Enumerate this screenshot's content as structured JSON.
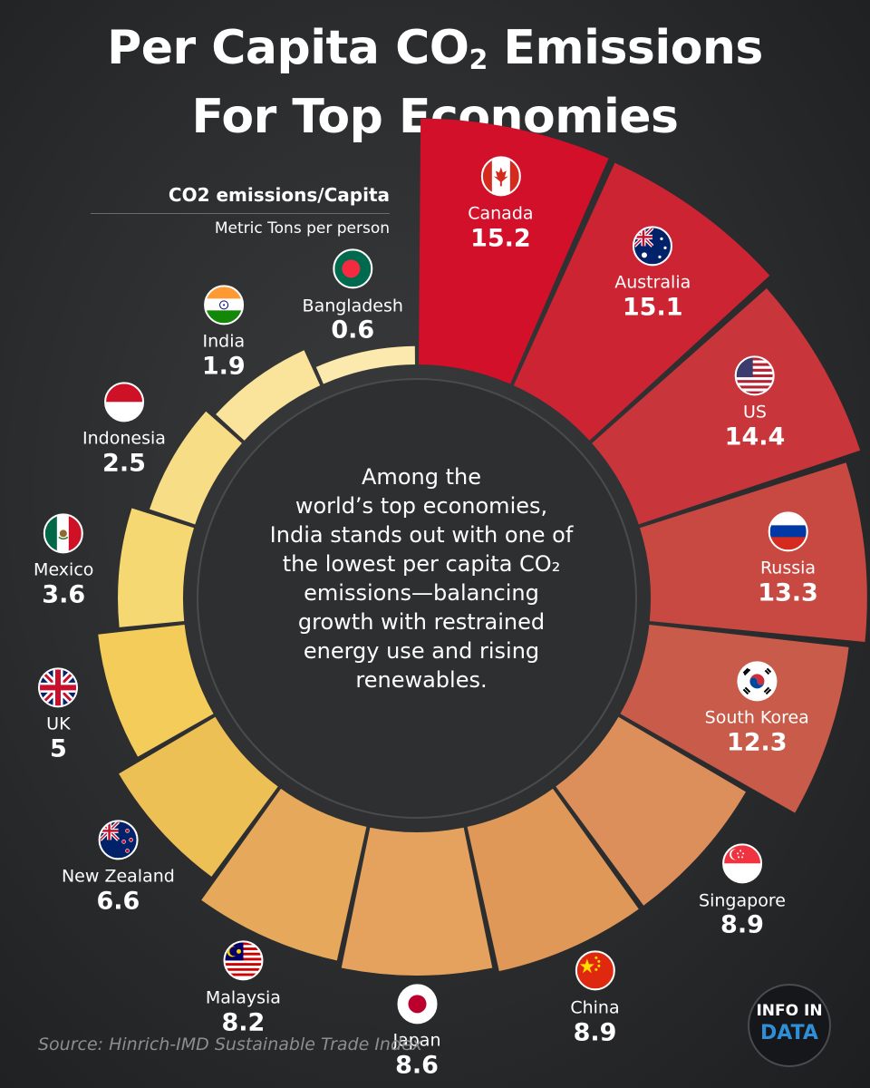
{
  "title": {
    "line1": "Per Capita CO",
    "sub": "2",
    "line1_end": " Emissions",
    "line2": "For Top Economies"
  },
  "legend": {
    "title": "CO2 emissions/Capita",
    "unit": "Metric Tons per person"
  },
  "center_text": {
    "l1": "Among the",
    "l2": "world’s top economies,",
    "l3": "India stands out with one of",
    "l4": "the lowest per capita CO₂",
    "l5": "emissions—balancing",
    "l6": "growth with restrained",
    "l7": "energy use and rising",
    "l8": "renewables."
  },
  "source": "Source: Hinrich-IMD Sustainable Trade Index",
  "logo": {
    "top": "INFO IN",
    "bottom": "DATA"
  },
  "chart_data": {
    "type": "radial-bar",
    "title": "Per Capita CO2 Emissions For Top Economies",
    "unit": "Metric Tons per person",
    "categories": [
      "Canada",
      "Australia",
      "US",
      "Russia",
      "South Korea",
      "Singapore",
      "China",
      "Japan",
      "Malaysia",
      "New Zealand",
      "UK",
      "Mexico",
      "Indonesia",
      "India",
      "Bangladesh"
    ],
    "values": [
      15.2,
      15.1,
      14.4,
      13.3,
      12.3,
      8.9,
      8.9,
      8.6,
      8.2,
      6.6,
      5,
      3.6,
      2.5,
      1.9,
      0.6
    ],
    "labels": [
      "15.2",
      "15.1",
      "14.4",
      "13.3",
      "12.3",
      "8.9",
      "8.9",
      "8.6",
      "8.2",
      "6.6",
      "5",
      "3.6",
      "2.5",
      "1.9",
      "0.6"
    ],
    "colors": [
      "#d2102a",
      "#cc2433",
      "#c8353a",
      "#c84942",
      "#c95b4a",
      "#dd8f5b",
      "#e09859",
      "#e5a25e",
      "#e6a95c",
      "#ecc055",
      "#f3cc5a",
      "#f6d872",
      "#f8dd87",
      "#fae49c",
      "#fbe9ad"
    ],
    "flags": [
      "canada-flag-icon",
      "australia-flag-icon",
      "us-flag-icon",
      "russia-flag-icon",
      "south-korea-flag-icon",
      "singapore-flag-icon",
      "china-flag-icon",
      "japan-flag-icon",
      "malaysia-flag-icon",
      "new-zealand-flag-icon",
      "uk-flag-icon",
      "mexico-flag-icon",
      "indonesia-flag-icon",
      "india-flag-icon",
      "bangladesh-flag-icon"
    ]
  }
}
